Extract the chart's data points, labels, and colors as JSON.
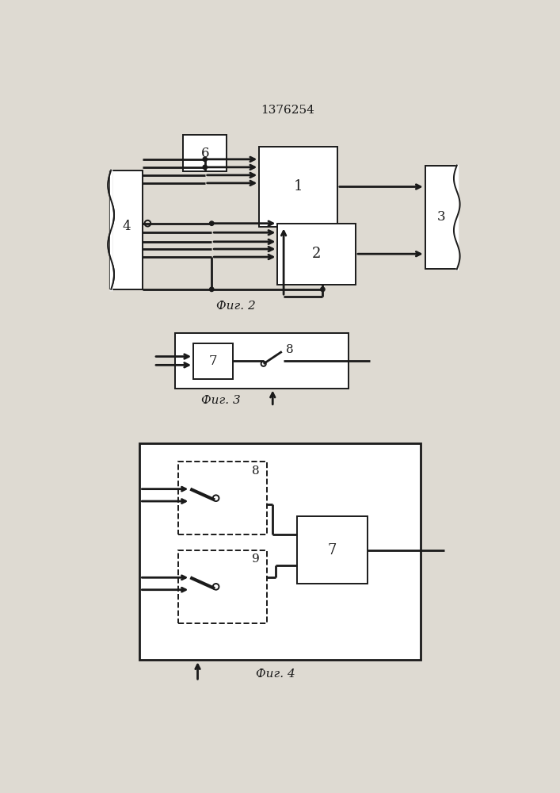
{
  "title": "1376254",
  "fig2_label": "Фиг. 2",
  "fig3_label": "Фиг. 3",
  "fig4_label": "Фиг. 4",
  "bg_color": "#dedad2",
  "line_color": "#1a1a1a",
  "box_color": "#ffffff"
}
